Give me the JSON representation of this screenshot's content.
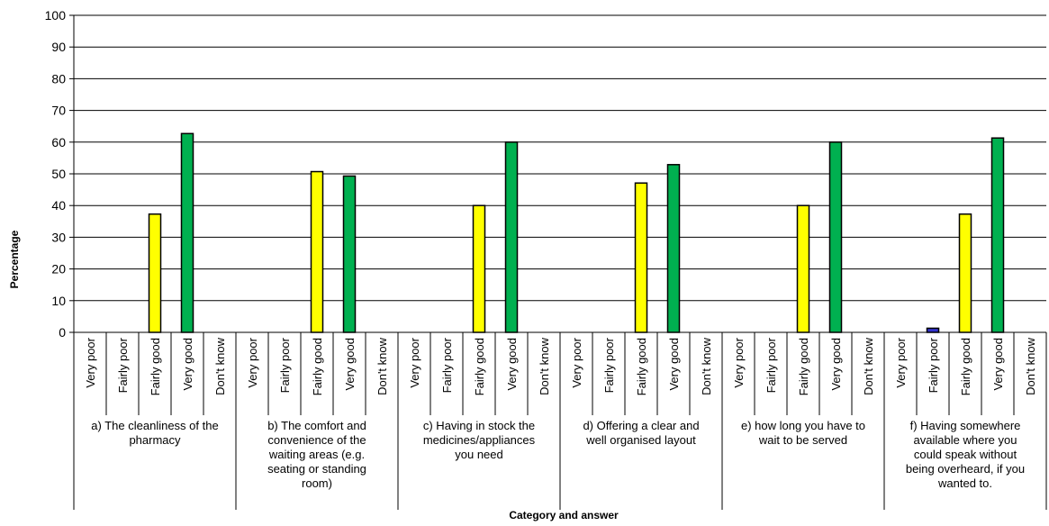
{
  "chart_data": {
    "type": "bar",
    "title": "",
    "ylabel": "Percentage",
    "xlabel": "Category and answer",
    "ylim": [
      0,
      100
    ],
    "yticks": [
      0,
      10,
      20,
      30,
      40,
      50,
      60,
      70,
      80,
      90,
      100
    ],
    "grid": true,
    "answers": [
      "Very poor",
      "Fairly poor",
      "Fairly good",
      "Very good",
      "Don't know"
    ],
    "answer_colors": [
      "#0000ff",
      "#3333cc",
      "#ffff00",
      "#00b050",
      "#ffffff"
    ],
    "groups": [
      {
        "label": "a) The cleanliness of the pharmacy",
        "lines": [
          "a) The cleanliness of the",
          "pharmacy"
        ],
        "values": [
          0,
          0,
          37.3,
          62.7,
          0
        ]
      },
      {
        "label": "b) The comfort and convenience of the waiting areas (e.g. seating or standing room)",
        "lines": [
          "b) The comfort and",
          "convenience of the",
          "waiting areas (e.g.",
          "seating or standing",
          "room)"
        ],
        "values": [
          0,
          0,
          50.7,
          49.3,
          0
        ]
      },
      {
        "label": "c) Having in stock the medicines/appliances you need",
        "lines": [
          "c) Having in stock the",
          "medicines/appliances",
          "you need"
        ],
        "values": [
          0,
          0,
          40.0,
          60.0,
          0
        ]
      },
      {
        "label": "d) Offering a clear and well organised layout",
        "lines": [
          "d) Offering a clear and",
          "well organised layout"
        ],
        "values": [
          0,
          0,
          47.1,
          52.9,
          0
        ]
      },
      {
        "label": "e) how long you have to wait to be served",
        "lines": [
          "e) how long you have to",
          "wait to be served"
        ],
        "values": [
          0,
          0,
          40.0,
          60.0,
          0
        ]
      },
      {
        "label": "f) Having somewhere available where you could speak without being overheard, if you wanted to.",
        "lines": [
          "f) Having somewhere",
          "available where you",
          "could speak without",
          "being overheard, if you",
          "wanted to."
        ],
        "values": [
          0,
          1.3,
          37.3,
          61.3,
          0
        ]
      }
    ]
  }
}
